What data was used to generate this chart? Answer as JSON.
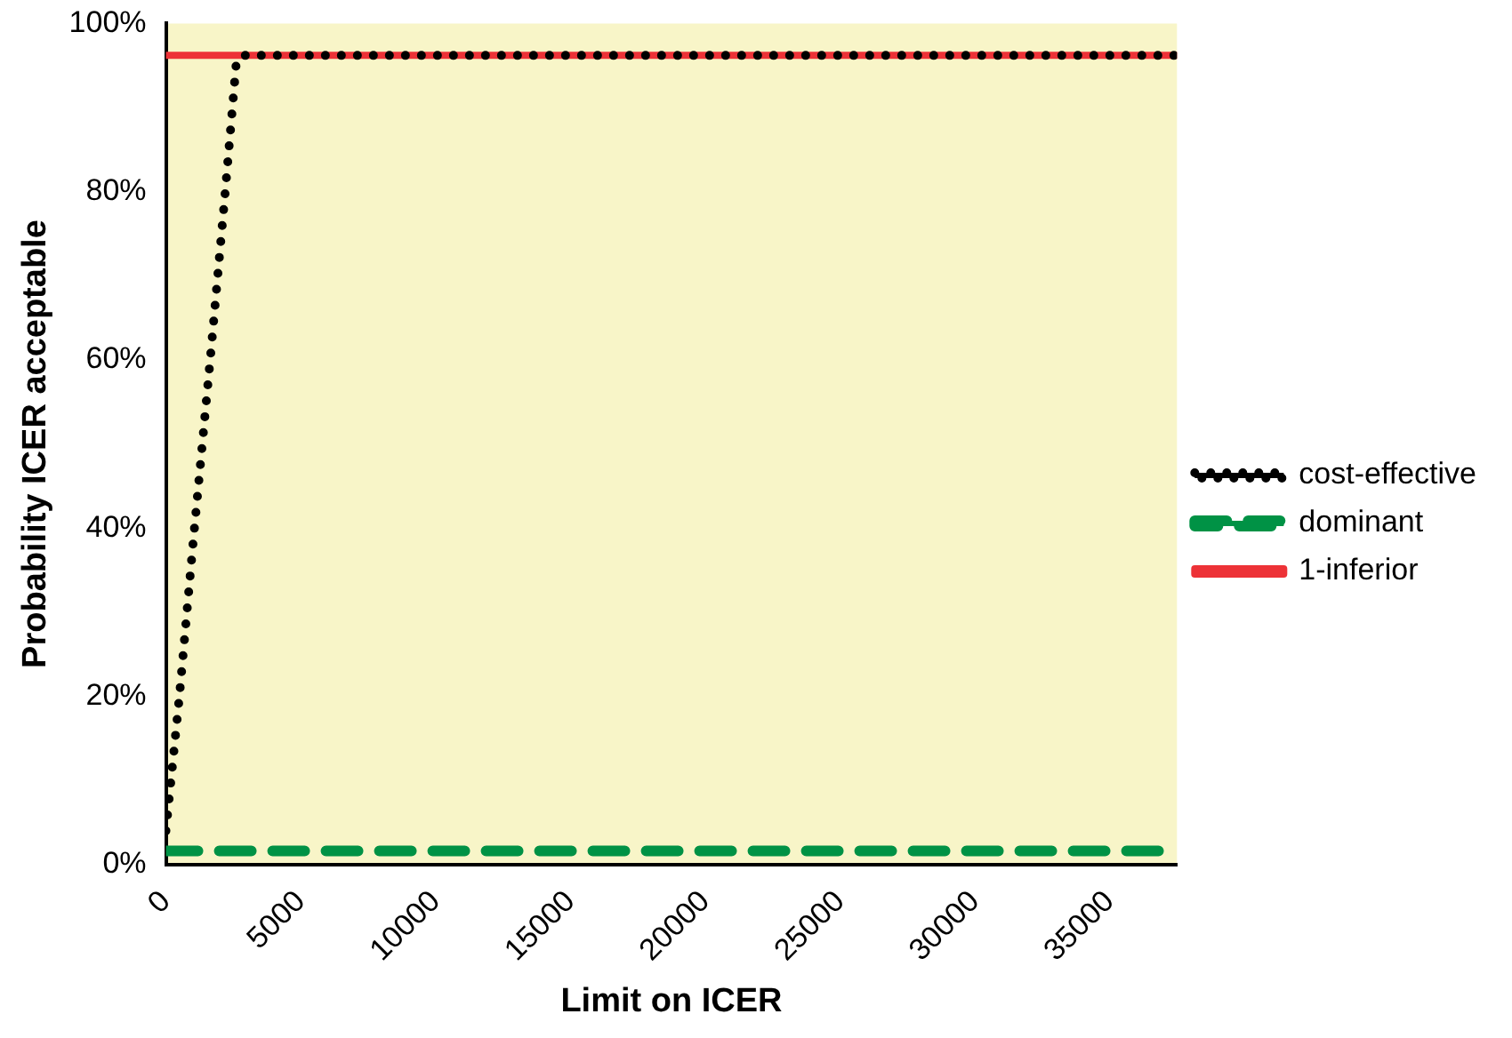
{
  "chart_data": {
    "type": "line",
    "xlabel": "Limit on ICER",
    "ylabel": "Probability ICER acceptable",
    "xlim": [
      0,
      37500
    ],
    "xticks": [
      0,
      5000,
      10000,
      15000,
      20000,
      25000,
      30000,
      35000
    ],
    "ylim": [
      0,
      1
    ],
    "yticks": [
      {
        "value": 0,
        "label": "0%"
      },
      {
        "value": 0.2,
        "label": "20%"
      },
      {
        "value": 0.4,
        "label": "40%"
      },
      {
        "value": 0.6,
        "label": "60%"
      },
      {
        "value": 0.8,
        "label": "80%"
      },
      {
        "value": 1,
        "label": "100%"
      }
    ],
    "grid": false,
    "legend": "right",
    "marker": "none",
    "series": [
      {
        "name": "cost-effective",
        "color": "#000000",
        "line_style": "dotted",
        "x": [
          0,
          500,
          1000,
          1670,
          2200,
          2600,
          2800,
          37500
        ],
        "values": [
          0.04,
          0.2,
          0.38,
          0.61,
          0.8,
          0.95,
          0.962,
          0.962
        ]
      },
      {
        "name": "dominant",
        "color": "#009245",
        "line_style": "dashed",
        "x": [
          0,
          37500
        ],
        "values": [
          0.016,
          0.016
        ]
      },
      {
        "name": "1-inferior",
        "color": "#ed3237",
        "line_style": "solid",
        "x": [
          0,
          37500
        ],
        "values": [
          0.962,
          0.962
        ]
      }
    ]
  }
}
